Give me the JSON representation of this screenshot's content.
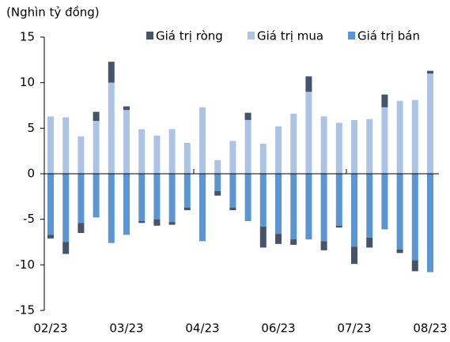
{
  "chart_data": {
    "type": "bar",
    "stacked": true,
    "y_label": "(Nghìn tỷ đồng)",
    "categories": [
      "02/23",
      null,
      null,
      null,
      null,
      "03/23",
      null,
      null,
      null,
      null,
      "04/23",
      null,
      null,
      null,
      null,
      "06/23",
      null,
      null,
      null,
      null,
      "07/23",
      null,
      null,
      null,
      null,
      "08/23"
    ],
    "series": [
      {
        "name": "Giá trị ròng",
        "color": "#44546a",
        "values": [
          -0.4,
          -1.3,
          -1.1,
          1.0,
          2.3,
          0.4,
          -0.2,
          -0.7,
          -0.3,
          -0.3,
          0,
          -0.5,
          -0.3,
          0.8,
          -2.3,
          -1.1,
          -0.6,
          1.7,
          -1.0,
          -0.2,
          -1.9,
          -1.1,
          1.4,
          -0.4,
          -1.2,
          0.3
        ]
      },
      {
        "name": "Giá trị mua",
        "color": "#adc3e6",
        "values": [
          6.3,
          6.2,
          4.1,
          5.8,
          10.0,
          7.0,
          4.9,
          4.2,
          4.9,
          3.4,
          7.3,
          1.5,
          3.6,
          5.9,
          3.3,
          5.2,
          6.6,
          9.0,
          6.3,
          5.6,
          5.9,
          6.0,
          7.3,
          8.0,
          8.1,
          11.0
        ]
      },
      {
        "name": "Giá trị bán",
        "color": "#5b96d4",
        "values": [
          -6.7,
          -7.5,
          -5.4,
          -4.8,
          -7.6,
          -6.7,
          -5.2,
          -5.0,
          -5.3,
          -3.7,
          -7.4,
          -1.9,
          -3.7,
          -5.2,
          -5.8,
          -6.6,
          -7.2,
          -7.2,
          -7.4,
          -5.7,
          -8.0,
          -7.0,
          -6.1,
          -8.3,
          -9.5,
          -10.8
        ]
      }
    ],
    "ylim": [
      -15,
      15
    ],
    "yticks": [
      -15,
      -10,
      -5,
      0,
      5,
      10,
      15
    ],
    "grid": false
  }
}
